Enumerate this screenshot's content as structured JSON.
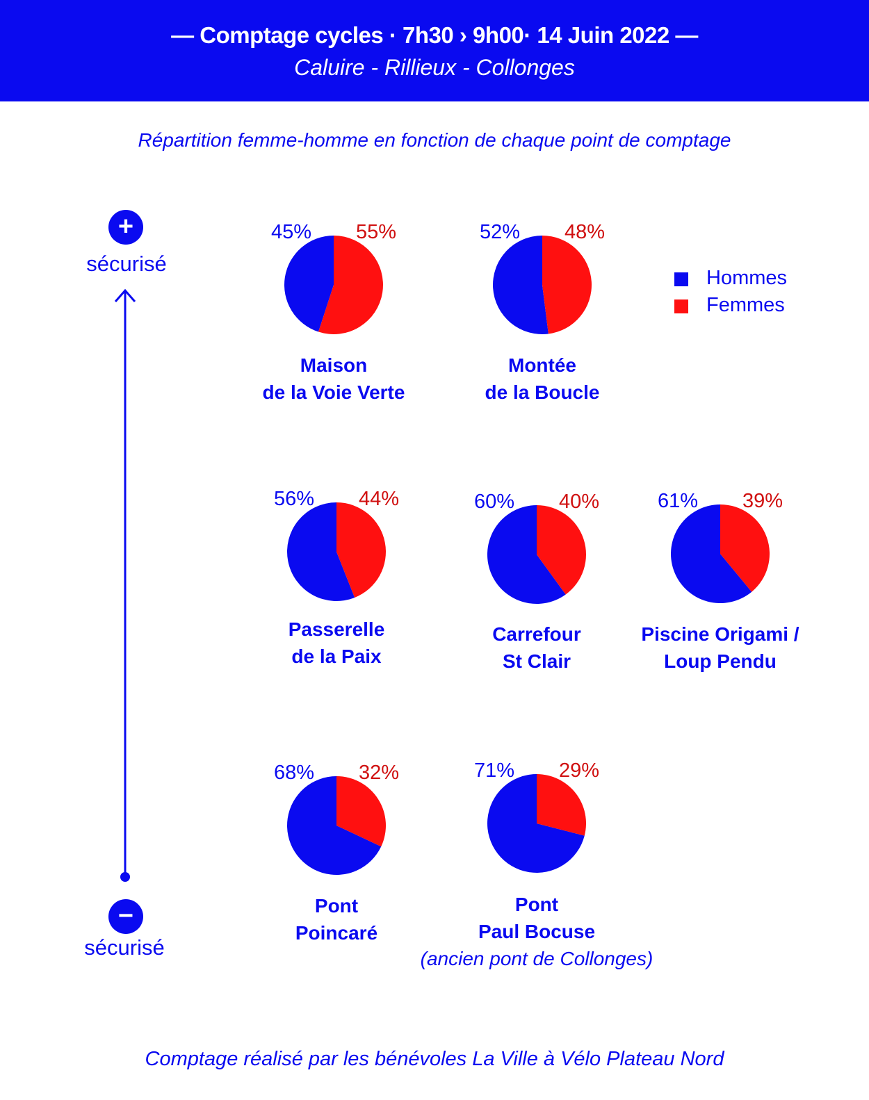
{
  "header": {
    "title": "— Comptage cycles  · 7h30 › 9h00· 14 Juin 2022 —",
    "subtitle": "Caluire - Rillieux - Collonges"
  },
  "axis": {
    "top_symbol": "+",
    "top_label": "sécurisé",
    "bottom_symbol": "−",
    "bottom_label": "sécurisé"
  },
  "legend": {
    "items": [
      {
        "label": "Hommes",
        "color": "#0a0af0"
      },
      {
        "label": "Femmes",
        "color": "#ff1010"
      }
    ]
  },
  "footer": "Comptage réalisé par les bénévoles La Ville à Vélo Plateau Nord",
  "chart_data": {
    "type": "pie",
    "subtitle": "Répartition femme-homme en fonction de chaque point de comptage",
    "series_names": [
      "Hommes",
      "Femmes"
    ],
    "colors": {
      "Hommes": "#0a0af0",
      "Femmes": "#ff1010"
    },
    "points": [
      {
        "name_lines": [
          "Maison",
          "de la Voie Verte"
        ],
        "hommes": 45,
        "femmes": 55,
        "hommes_label": "45%",
        "femmes_label": "55%"
      },
      {
        "name_lines": [
          "Montée",
          "de la Boucle"
        ],
        "hommes": 52,
        "femmes": 48,
        "hommes_label": "52%",
        "femmes_label": "48%"
      },
      {
        "name_lines": [
          "Passerelle",
          "de la Paix"
        ],
        "hommes": 56,
        "femmes": 44,
        "hommes_label": "56%",
        "femmes_label": "44%"
      },
      {
        "name_lines": [
          "Carrefour",
          "St Clair"
        ],
        "hommes": 60,
        "femmes": 40,
        "hommes_label": "60%",
        "femmes_label": "40%"
      },
      {
        "name_lines": [
          "Piscine Origami /",
          "Loup Pendu"
        ],
        "hommes": 61,
        "femmes": 39,
        "hommes_label": "61%",
        "femmes_label": "39%"
      },
      {
        "name_lines": [
          "Pont",
          "Poincaré"
        ],
        "hommes": 68,
        "femmes": 32,
        "hommes_label": "68%",
        "femmes_label": "32%"
      },
      {
        "name_lines": [
          "Pont",
          "Paul Bocuse"
        ],
        "note": "(ancien pont de Collonges)",
        "hommes": 71,
        "femmes": 29,
        "hommes_label": "71%",
        "femmes_label": "29%"
      }
    ]
  }
}
